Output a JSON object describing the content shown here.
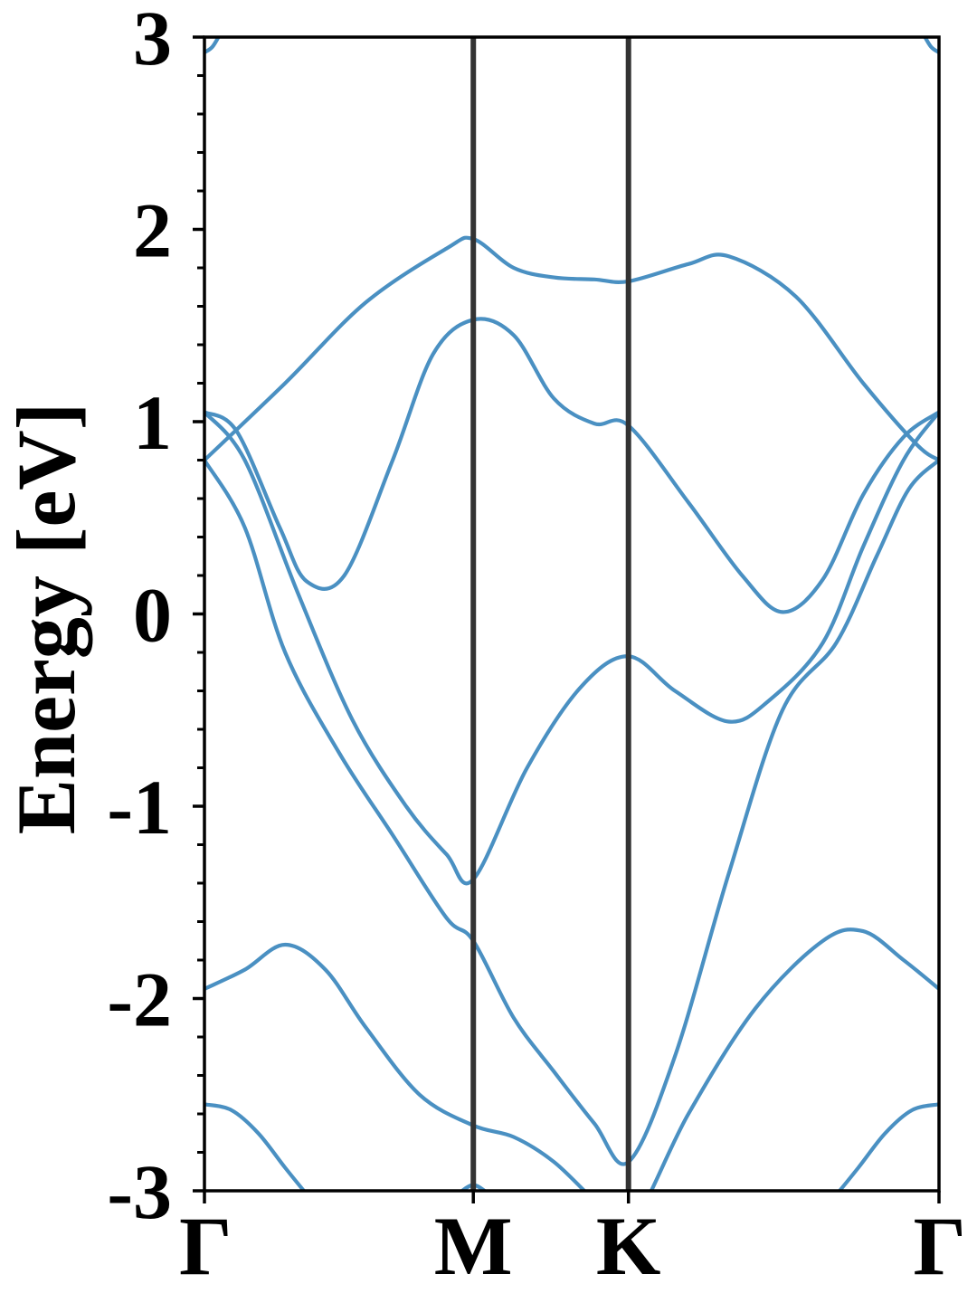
{
  "chart_data": {
    "type": "line",
    "title": "",
    "xlabel": "",
    "ylabel": "Energy [eV]",
    "ylim": [
      -3,
      3
    ],
    "yticks": [
      -3,
      -2,
      -1,
      0,
      1,
      2,
      3
    ],
    "ytick_labels": [
      "-3",
      "-2",
      "-1",
      "0",
      "1",
      "2",
      "3"
    ],
    "yminor_step": 0.2,
    "xlim": [
      0,
      2.732
    ],
    "xticks": [
      0,
      1.0,
      1.577,
      2.732
    ],
    "xtick_labels": [
      "Γ",
      "M",
      "K",
      "Γ"
    ],
    "kpath_lines": [
      1.0,
      1.577
    ],
    "grid": false,
    "line_color": "#4a90c2",
    "kpath_line_color": "#333333",
    "series": [
      {
        "x": [
          0,
          0.3,
          0.6,
          0.9,
          1.0,
          1.15,
          1.3,
          1.45,
          1.577,
          1.8,
          1.95,
          2.2,
          2.45,
          2.65,
          2.732
        ],
        "values": [
          0.8,
          1.2,
          1.62,
          1.9,
          1.95,
          1.8,
          1.75,
          1.74,
          1.73,
          1.82,
          1.86,
          1.65,
          1.2,
          0.88,
          0.8
        ]
      },
      {
        "x": [
          0,
          0.12,
          0.28,
          0.38,
          0.52,
          0.7,
          0.85,
          1.0,
          1.15,
          1.3,
          1.45,
          1.577,
          1.8,
          2.0,
          2.15,
          2.3,
          2.45,
          2.6,
          2.732
        ],
        "values": [
          1.05,
          0.95,
          0.45,
          0.17,
          0.2,
          0.8,
          1.35,
          1.53,
          1.45,
          1.12,
          0.99,
          0.98,
          0.58,
          0.2,
          0.01,
          0.18,
          0.62,
          0.92,
          1.05
        ]
      },
      {
        "x": [
          0,
          0.15,
          0.35,
          0.55,
          0.75,
          0.9,
          1.0,
          1.2,
          1.4,
          1.577,
          1.75,
          1.95,
          2.1,
          2.3,
          2.45,
          2.6,
          2.732
        ],
        "values": [
          1.05,
          0.8,
          0.1,
          -0.55,
          -1.0,
          -1.25,
          -1.38,
          -0.8,
          -0.38,
          -0.22,
          -0.4,
          -0.56,
          -0.45,
          -0.15,
          0.35,
          0.8,
          1.05
        ]
      },
      {
        "x": [
          0,
          0.15,
          0.3,
          0.5,
          0.7,
          0.9,
          1.0,
          1.15,
          1.3,
          1.45,
          1.577,
          1.75,
          1.95,
          2.15,
          2.35,
          2.5,
          2.62,
          2.732
        ],
        "values": [
          0.8,
          0.45,
          -0.2,
          -0.72,
          -1.15,
          -1.58,
          -1.7,
          -2.1,
          -2.38,
          -2.65,
          -2.85,
          -2.3,
          -1.35,
          -0.5,
          -0.15,
          0.3,
          0.65,
          0.8
        ]
      },
      {
        "x": [
          0,
          0.15,
          0.3,
          0.45,
          0.6,
          0.8,
          1.0,
          1.15,
          1.3,
          1.45,
          1.577,
          1.8,
          2.05,
          2.3,
          2.45,
          2.6,
          2.732
        ],
        "values": [
          -1.95,
          -1.85,
          -1.72,
          -1.85,
          -2.15,
          -2.5,
          -2.66,
          -2.72,
          -2.85,
          -3.05,
          -3.2,
          -2.6,
          -2.05,
          -1.7,
          -1.65,
          -1.8,
          -1.95
        ]
      },
      {
        "x": [
          0,
          0.1,
          0.2,
          0.3,
          0.4,
          0.5
        ],
        "values": [
          -2.55,
          -2.58,
          -2.7,
          -2.88,
          -3.05,
          -3.2
        ]
      },
      {
        "x": [
          2.232,
          2.332,
          2.432,
          2.532,
          2.632,
          2.732
        ],
        "values": [
          -3.2,
          -3.05,
          -2.88,
          -2.7,
          -2.58,
          -2.55
        ]
      },
      {
        "x": [
          0,
          0.03,
          0.06
        ],
        "values": [
          2.92,
          2.95,
          3.02
        ]
      },
      {
        "x": [
          2.672,
          2.702,
          2.732
        ],
        "values": [
          3.02,
          2.95,
          2.92
        ]
      },
      {
        "x": [
          0.94,
          1.0,
          1.06
        ],
        "values": [
          -3.02,
          -2.97,
          -3.02
        ]
      }
    ]
  }
}
